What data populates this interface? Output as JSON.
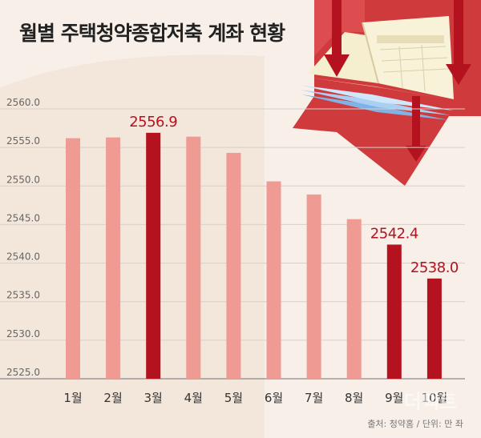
{
  "title": "월별 주택청약종합저축 계좌 현황",
  "source": "출처: 청약홈 / 단위: 만 좌",
  "watermark": "더팩트",
  "colors": {
    "background": "#f7efe8",
    "bar_light": "#f09a94",
    "bar_dark": "#b5121f",
    "label": "#b5121f",
    "arrow": "#cf3a3d"
  },
  "chart_data": {
    "type": "bar",
    "categories": [
      "1월",
      "2월",
      "3월",
      "4월",
      "5월",
      "6월",
      "7월",
      "8월",
      "9월",
      "10월"
    ],
    "values": [
      2556.2,
      2556.3,
      2556.9,
      2556.4,
      2554.3,
      2550.6,
      2548.9,
      2545.7,
      2542.4,
      2538.0
    ],
    "highlight": [
      false,
      false,
      true,
      false,
      false,
      false,
      false,
      false,
      true,
      true
    ],
    "data_labels": [
      "",
      "",
      "2556.9",
      "",
      "",
      "",
      "",
      "",
      "2542.4",
      "2538.0"
    ],
    "yticks": [
      "2525.0",
      "2530.0",
      "2535.0",
      "2540.0",
      "2545.0",
      "2550.0",
      "2555.0",
      "2560.0"
    ],
    "ylim": [
      2525,
      2560
    ],
    "title": "월별 주택청약종합저축 계좌 현황",
    "xlabel": "",
    "ylabel": ""
  }
}
